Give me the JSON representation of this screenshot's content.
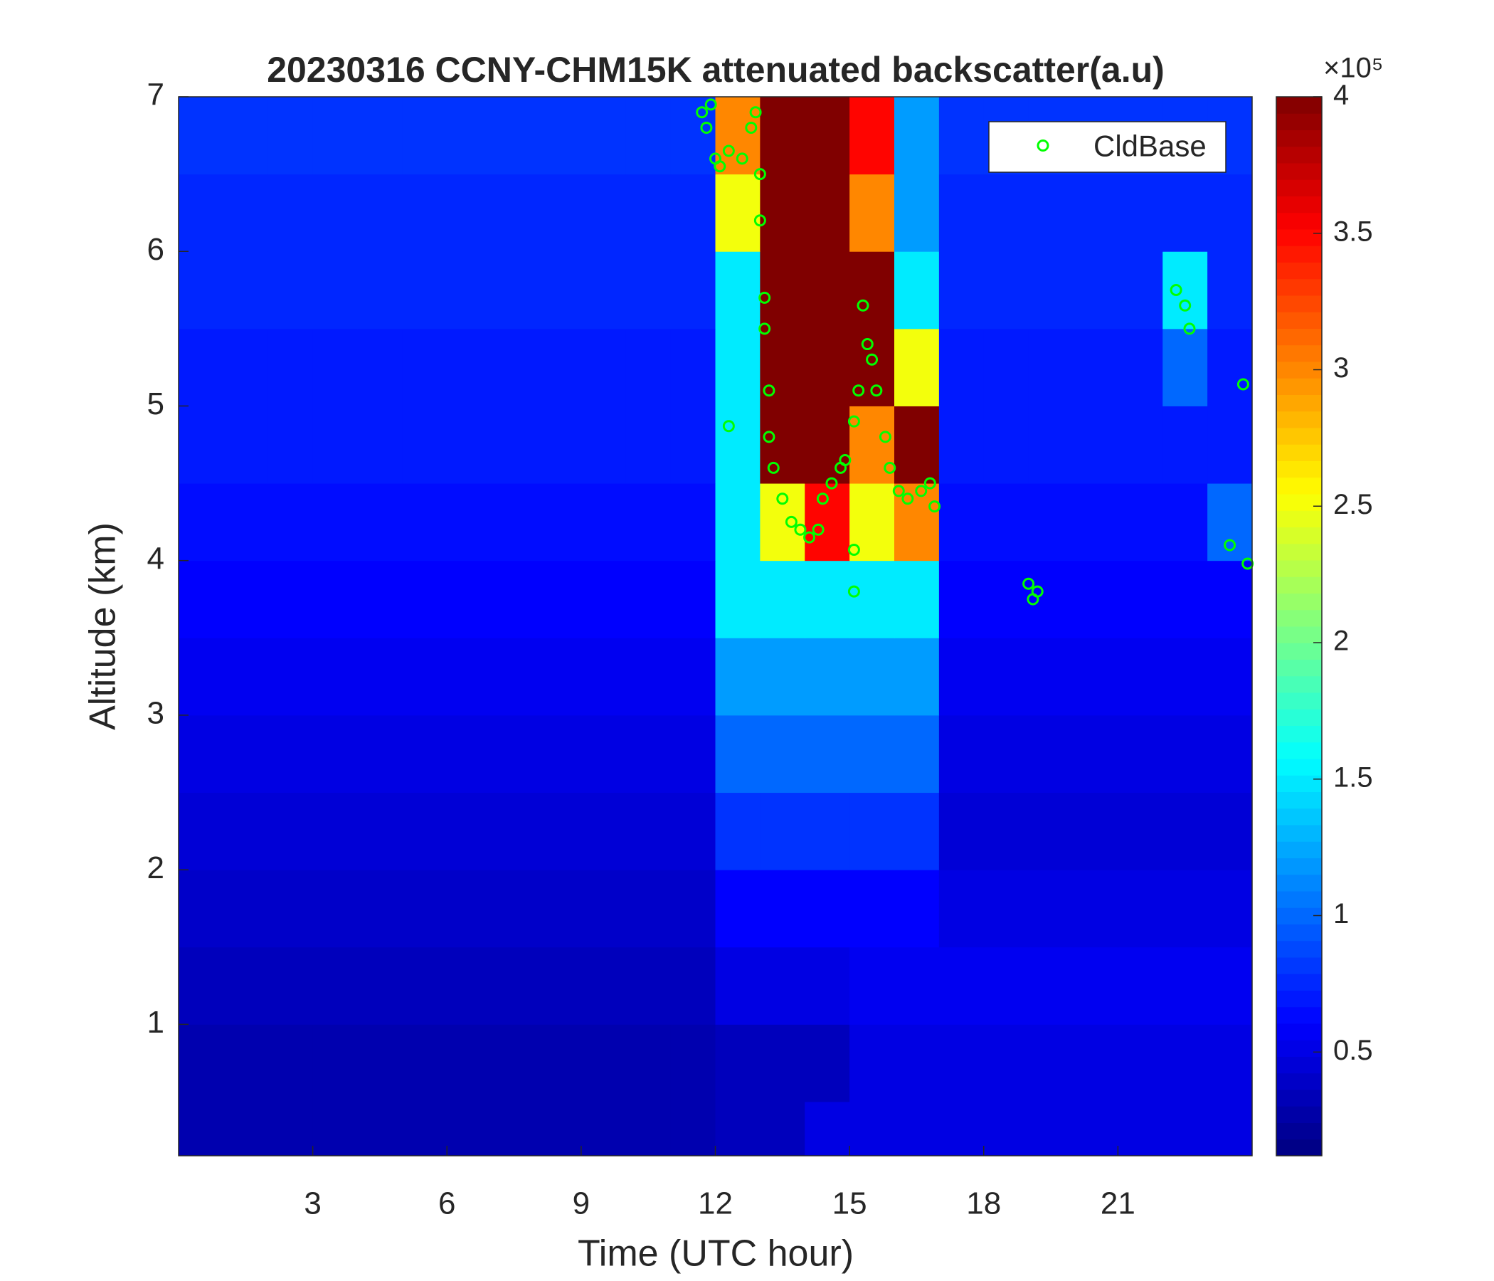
{
  "chart_data": {
    "type": "heatmap",
    "title": "20230316 CCNY-CHM15K attenuated backscatter(a.u)",
    "xlabel": "Time (UTC hour)",
    "ylabel": "Altitude (km)",
    "xlim": [
      0,
      24
    ],
    "xticks": [
      3,
      6,
      9,
      12,
      15,
      18,
      21
    ],
    "ylim": [
      0.15,
      7
    ],
    "yticks": [
      1,
      2,
      3,
      4,
      5,
      6,
      7
    ],
    "x_edges": [
      0,
      1,
      2,
      3,
      4,
      5,
      6,
      7,
      8,
      9,
      10,
      11,
      12,
      13,
      14,
      15,
      16,
      17,
      18,
      19,
      20,
      21,
      22,
      23,
      24
    ],
    "y_edges": [
      0.15,
      0.5,
      1,
      1.5,
      2,
      2.5,
      3,
      3.5,
      4,
      4.5,
      5,
      5.5,
      6,
      6.5,
      7
    ],
    "z": [
      [
        0.3,
        0.3,
        0.3,
        0.3,
        0.3,
        0.3,
        0.3,
        0.3,
        0.3,
        0.3,
        0.3,
        0.3,
        0.35,
        0.35,
        0.5,
        0.5,
        0.5,
        0.5,
        0.5,
        0.5,
        0.5,
        0.5,
        0.5,
        0.5
      ],
      [
        0.3,
        0.3,
        0.3,
        0.3,
        0.3,
        0.3,
        0.3,
        0.3,
        0.3,
        0.3,
        0.3,
        0.3,
        0.35,
        0.35,
        0.35,
        0.5,
        0.5,
        0.5,
        0.5,
        0.5,
        0.5,
        0.5,
        0.5,
        0.5
      ],
      [
        0.35,
        0.35,
        0.35,
        0.35,
        0.35,
        0.35,
        0.35,
        0.35,
        0.35,
        0.35,
        0.35,
        0.35,
        0.5,
        0.5,
        0.5,
        0.55,
        0.55,
        0.55,
        0.55,
        0.55,
        0.55,
        0.55,
        0.55,
        0.55
      ],
      [
        0.4,
        0.4,
        0.4,
        0.4,
        0.4,
        0.4,
        0.4,
        0.4,
        0.4,
        0.4,
        0.4,
        0.4,
        0.6,
        0.6,
        0.6,
        0.6,
        0.6,
        0.5,
        0.5,
        0.5,
        0.5,
        0.5,
        0.5,
        0.5
      ],
      [
        0.45,
        0.45,
        0.45,
        0.45,
        0.45,
        0.45,
        0.45,
        0.45,
        0.45,
        0.45,
        0.45,
        0.45,
        0.8,
        0.8,
        0.8,
        0.8,
        0.8,
        0.45,
        0.45,
        0.45,
        0.45,
        0.45,
        0.45,
        0.45
      ],
      [
        0.5,
        0.5,
        0.5,
        0.5,
        0.5,
        0.5,
        0.5,
        0.5,
        0.5,
        0.5,
        0.5,
        0.5,
        1.0,
        1.0,
        1.0,
        1.0,
        1.0,
        0.5,
        0.5,
        0.5,
        0.5,
        0.5,
        0.5,
        0.5
      ],
      [
        0.55,
        0.55,
        0.55,
        0.55,
        0.55,
        0.55,
        0.55,
        0.55,
        0.55,
        0.55,
        0.55,
        0.55,
        1.2,
        1.2,
        1.2,
        1.2,
        1.2,
        0.55,
        0.55,
        0.55,
        0.55,
        0.55,
        0.55,
        0.55
      ],
      [
        0.6,
        0.6,
        0.6,
        0.6,
        0.6,
        0.6,
        0.6,
        0.6,
        0.6,
        0.6,
        0.6,
        0.6,
        1.5,
        1.5,
        1.5,
        1.5,
        1.5,
        0.6,
        0.6,
        0.6,
        0.6,
        0.6,
        0.6,
        0.6
      ],
      [
        0.65,
        0.65,
        0.65,
        0.65,
        0.65,
        0.65,
        0.65,
        0.65,
        0.65,
        0.65,
        0.65,
        0.65,
        1.5,
        2.5,
        3.5,
        2.5,
        3.0,
        0.65,
        0.65,
        0.65,
        0.65,
        0.65,
        0.65,
        1.0
      ],
      [
        0.7,
        0.7,
        0.7,
        0.7,
        0.7,
        0.7,
        0.7,
        0.7,
        0.7,
        0.7,
        0.7,
        0.7,
        1.5,
        4,
        4,
        3,
        4,
        0.7,
        0.7,
        0.7,
        0.7,
        0.7,
        0.7,
        0.7
      ],
      [
        0.7,
        0.7,
        0.7,
        0.7,
        0.7,
        0.7,
        0.7,
        0.7,
        0.7,
        0.7,
        0.7,
        0.7,
        1.5,
        4,
        4,
        4,
        2.5,
        0.7,
        0.7,
        0.7,
        0.7,
        0.7,
        1.0,
        0.7
      ],
      [
        0.75,
        0.75,
        0.75,
        0.75,
        0.75,
        0.75,
        0.75,
        0.75,
        0.75,
        0.75,
        0.75,
        0.75,
        1.5,
        4,
        4,
        4,
        1.5,
        0.75,
        0.75,
        0.75,
        0.75,
        0.75,
        1.5,
        0.75
      ],
      [
        0.75,
        0.75,
        0.75,
        0.75,
        0.75,
        0.75,
        0.75,
        0.75,
        0.75,
        0.75,
        0.75,
        0.75,
        2.5,
        4,
        4,
        3,
        1.2,
        0.75,
        0.75,
        0.75,
        0.75,
        0.75,
        0.75,
        0.75
      ],
      [
        0.8,
        0.8,
        0.8,
        0.8,
        0.8,
        0.8,
        0.8,
        0.8,
        0.8,
        0.8,
        0.8,
        0.8,
        3,
        4,
        4,
        3.5,
        1.2,
        0.8,
        0.8,
        0.8,
        0.8,
        0.8,
        0.8,
        0.8
      ]
    ],
    "colormap": "jet",
    "clim": [
      0.12,
      4
    ],
    "colorbar_ticks": [
      0.5,
      1,
      1.5,
      2,
      2.5,
      3,
      3.5,
      4
    ],
    "colorbar_label": "×10⁵",
    "legend": "upper right",
    "series": [
      {
        "name": "CldBase",
        "type": "scatter",
        "color": "#00ff00",
        "x": [
          11.7,
          11.8,
          11.9,
          12.0,
          12.1,
          12.3,
          12.3,
          12.6,
          12.8,
          12.9,
          13.0,
          13.0,
          13.1,
          13.1,
          13.2,
          13.2,
          13.3,
          13.5,
          13.7,
          13.9,
          14.1,
          14.3,
          14.4,
          14.6,
          14.8,
          14.9,
          15.1,
          15.2,
          15.1,
          15.1,
          15.3,
          15.4,
          15.5,
          15.6,
          15.8,
          15.9,
          16.1,
          16.3,
          16.6,
          16.8,
          16.9,
          19.0,
          19.1,
          19.2,
          22.3,
          22.5,
          22.6,
          23.5,
          23.8,
          23.9
        ],
        "y": [
          6.9,
          6.8,
          6.95,
          6.6,
          6.55,
          6.65,
          4.87,
          6.6,
          6.8,
          6.9,
          6.5,
          6.2,
          5.7,
          5.5,
          5.1,
          4.8,
          4.6,
          4.4,
          4.25,
          4.2,
          4.15,
          4.2,
          4.4,
          4.5,
          4.6,
          4.65,
          4.9,
          5.1,
          3.8,
          4.07,
          5.65,
          5.4,
          5.3,
          5.1,
          4.8,
          4.6,
          4.45,
          4.4,
          4.45,
          4.5,
          4.35,
          3.85,
          3.75,
          3.8,
          5.75,
          5.65,
          5.5,
          4.1,
          5.14,
          3.98
        ]
      }
    ]
  }
}
